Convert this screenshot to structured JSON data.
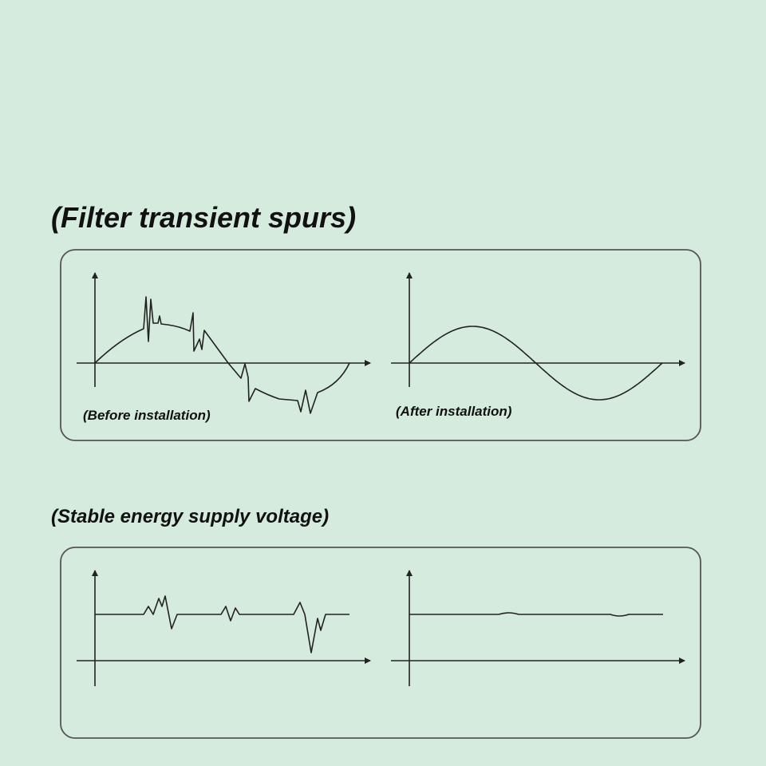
{
  "sections": [
    {
      "title": "(Filter transient spurs)",
      "left_label": "(Before installation)",
      "right_label": "(After installation)"
    },
    {
      "title": "(Stable energy supply voltage)"
    }
  ],
  "colors": {
    "background": "#d5ebde",
    "line": "#222222",
    "panel_border": "#555555"
  }
}
